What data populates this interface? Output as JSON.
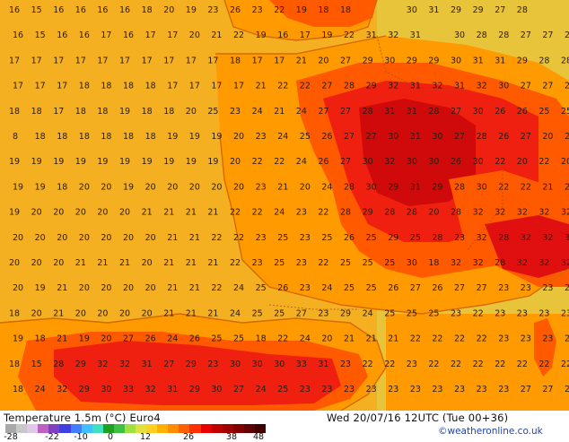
{
  "footer": {
    "title": "Temperature 1.5m (°C) Euro4",
    "valid_time": "Wed 20/07/16 12UTC  (Tue 00+36)",
    "copyright": "©weatheronline.co.uk"
  },
  "scale": {
    "ticks": [
      "-28",
      "-22",
      "-10",
      "0",
      "12",
      "26",
      "38",
      "48"
    ],
    "colors": [
      "#a8a8a8",
      "#c8c8c8",
      "#e0c8e8",
      "#c060c0",
      "#8040c0",
      "#4040e0",
      "#4080ff",
      "#40c0ff",
      "#40e0c0",
      "#20a020",
      "#40c040",
      "#a0e040",
      "#e0e040",
      "#ffd020",
      "#ffb000",
      "#ff8c00",
      "#ff6000",
      "#ff3000",
      "#e80000",
      "#c00000",
      "#a00000",
      "#800000",
      "#600000",
      "#400000"
    ]
  },
  "map": {
    "colors": {
      "sea": "#e8c43a",
      "cool_land": "#f4b020",
      "warm": "#ff9a00",
      "hot": "#ff5a00",
      "very_hot": "#f02010",
      "extreme": "#d00a0a",
      "coast": "#d46a00"
    },
    "values": [
      [
        0,
        [
          "16",
          "15",
          "16",
          "16",
          "16",
          "16",
          "18",
          "20",
          "19",
          "23",
          "26",
          "23",
          "22",
          "19",
          "18",
          "18",
          "",
          "",
          "30",
          "31",
          "29",
          "29",
          "27",
          "28"
        ]
      ],
      [
        1,
        [
          "16",
          "15",
          "16",
          "16",
          "17",
          "16",
          "17",
          "17",
          "20",
          "21",
          "22",
          "19",
          "16",
          "17",
          "19",
          "22",
          "31",
          "32",
          "31",
          "",
          "30",
          "28",
          "28",
          "27",
          "27",
          "27"
        ]
      ],
      [
        2,
        [
          "17",
          "17",
          "17",
          "17",
          "17",
          "17",
          "17",
          "17",
          "17",
          "17",
          "18",
          "17",
          "17",
          "21",
          "20",
          "27",
          "29",
          "30",
          "29",
          "29",
          "30",
          "31",
          "31",
          "29",
          "28",
          "28"
        ]
      ],
      [
        3,
        [
          "17",
          "17",
          "17",
          "18",
          "18",
          "18",
          "18",
          "17",
          "17",
          "17",
          "17",
          "21",
          "22",
          "22",
          "27",
          "28",
          "29",
          "32",
          "31",
          "32",
          "31",
          "32",
          "30",
          "27",
          "27",
          "27"
        ]
      ],
      [
        4,
        [
          "18",
          "18",
          "17",
          "18",
          "18",
          "19",
          "18",
          "18",
          "20",
          "25",
          "23",
          "24",
          "21",
          "24",
          "27",
          "27",
          "28",
          "31",
          "31",
          "28",
          "27",
          "30",
          "26",
          "26",
          "25",
          "25"
        ]
      ],
      [
        5,
        [
          "8",
          "18",
          "18",
          "18",
          "18",
          "18",
          "18",
          "19",
          "19",
          "19",
          "20",
          "23",
          "24",
          "25",
          "26",
          "27",
          "27",
          "30",
          "31",
          "30",
          "27",
          "28",
          "26",
          "27",
          "20",
          "20"
        ]
      ],
      [
        6,
        [
          "19",
          "19",
          "19",
          "19",
          "19",
          "19",
          "19",
          "19",
          "19",
          "19",
          "20",
          "22",
          "22",
          "24",
          "26",
          "27",
          "30",
          "32",
          "30",
          "30",
          "26",
          "30",
          "22",
          "20",
          "22",
          "20"
        ]
      ],
      [
        7,
        [
          "19",
          "19",
          "18",
          "20",
          "20",
          "19",
          "20",
          "20",
          "20",
          "20",
          "20",
          "23",
          "21",
          "20",
          "24",
          "28",
          "30",
          "29",
          "31",
          "29",
          "28",
          "30",
          "22",
          "22",
          "21",
          "22"
        ]
      ],
      [
        8,
        [
          "19",
          "20",
          "20",
          "20",
          "20",
          "20",
          "21",
          "21",
          "21",
          "21",
          "22",
          "22",
          "24",
          "23",
          "22",
          "28",
          "29",
          "28",
          "28",
          "20",
          "28",
          "32",
          "32",
          "32",
          "32",
          "32"
        ]
      ],
      [
        9,
        [
          "20",
          "20",
          "20",
          "20",
          "20",
          "20",
          "20",
          "21",
          "21",
          "22",
          "22",
          "23",
          "25",
          "23",
          "25",
          "26",
          "25",
          "29",
          "25",
          "28",
          "23",
          "32",
          "28",
          "32",
          "32",
          "32"
        ]
      ],
      [
        10,
        [
          "20",
          "20",
          "20",
          "21",
          "21",
          "21",
          "20",
          "21",
          "21",
          "21",
          "22",
          "23",
          "25",
          "23",
          "22",
          "25",
          "25",
          "25",
          "30",
          "18",
          "32",
          "32",
          "28",
          "32",
          "32",
          "32"
        ]
      ],
      [
        11,
        [
          "20",
          "19",
          "21",
          "20",
          "20",
          "20",
          "20",
          "21",
          "21",
          "22",
          "24",
          "25",
          "26",
          "23",
          "24",
          "25",
          "25",
          "26",
          "27",
          "26",
          "27",
          "27",
          "23",
          "23",
          "23",
          "23"
        ]
      ],
      [
        12,
        [
          "18",
          "20",
          "21",
          "20",
          "20",
          "20",
          "20",
          "21",
          "21",
          "21",
          "24",
          "25",
          "25",
          "27",
          "23",
          "29",
          "24",
          "25",
          "25",
          "25",
          "23",
          "22",
          "23",
          "23",
          "23",
          "23"
        ]
      ],
      [
        13,
        [
          "19",
          "18",
          "21",
          "19",
          "20",
          "27",
          "26",
          "24",
          "26",
          "25",
          "25",
          "18",
          "22",
          "24",
          "20",
          "21",
          "21",
          "21",
          "22",
          "22",
          "22",
          "22",
          "23",
          "23",
          "23",
          "23"
        ]
      ],
      [
        14,
        [
          "18",
          "15",
          "28",
          "29",
          "32",
          "32",
          "31",
          "27",
          "29",
          "23",
          "30",
          "30",
          "30",
          "33",
          "31",
          "23",
          "22",
          "22",
          "23",
          "22",
          "22",
          "22",
          "22",
          "22",
          "22",
          "22"
        ]
      ],
      [
        15,
        [
          "18",
          "24",
          "32",
          "29",
          "30",
          "33",
          "32",
          "31",
          "29",
          "30",
          "27",
          "24",
          "25",
          "23",
          "23",
          "23",
          "23",
          "23",
          "23",
          "23",
          "23",
          "23",
          "23",
          "27",
          "27",
          "27"
        ]
      ]
    ]
  }
}
